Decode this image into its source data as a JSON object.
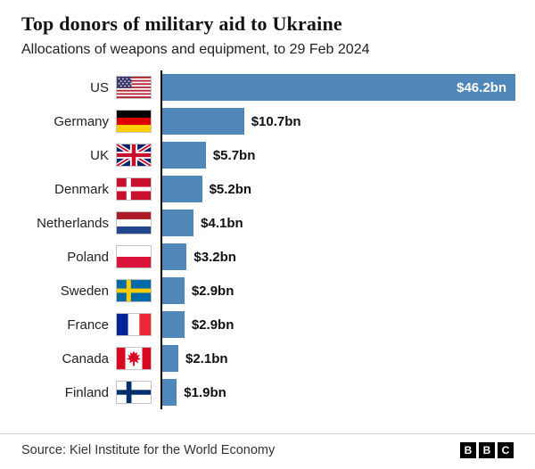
{
  "chart_data": {
    "type": "bar",
    "orientation": "horizontal",
    "title": "Top donors of military aid to Ukraine",
    "subtitle": "Allocations of weapons and equipment, to 29 Feb 2024",
    "categories": [
      "US",
      "Germany",
      "UK",
      "Denmark",
      "Netherlands",
      "Poland",
      "Sweden",
      "France",
      "Canada",
      "Finland"
    ],
    "values": [
      46.2,
      10.7,
      5.7,
      5.2,
      4.1,
      3.2,
      2.9,
      2.9,
      2.1,
      1.9
    ],
    "value_labels": [
      "$46.2bn",
      "$10.7bn",
      "$5.7bn",
      "$5.2bn",
      "$4.1bn",
      "$3.2bn",
      "$2.9bn",
      "$2.9bn",
      "$2.1bn",
      "$1.9bn"
    ],
    "xlim": [
      0,
      46.2
    ],
    "bar_color": "#4e87b8",
    "axis_color": "#000000",
    "grid": false,
    "legend": false,
    "flag_icons": [
      "us-flag-icon",
      "germany-flag-icon",
      "uk-flag-icon",
      "denmark-flag-icon",
      "netherlands-flag-icon",
      "poland-flag-icon",
      "sweden-flag-icon",
      "france-flag-icon",
      "canada-flag-icon",
      "finland-flag-icon"
    ]
  },
  "footer": {
    "source": "Source: Kiel Institute for the World Economy",
    "bbc_letters": [
      "B",
      "B",
      "C"
    ]
  }
}
